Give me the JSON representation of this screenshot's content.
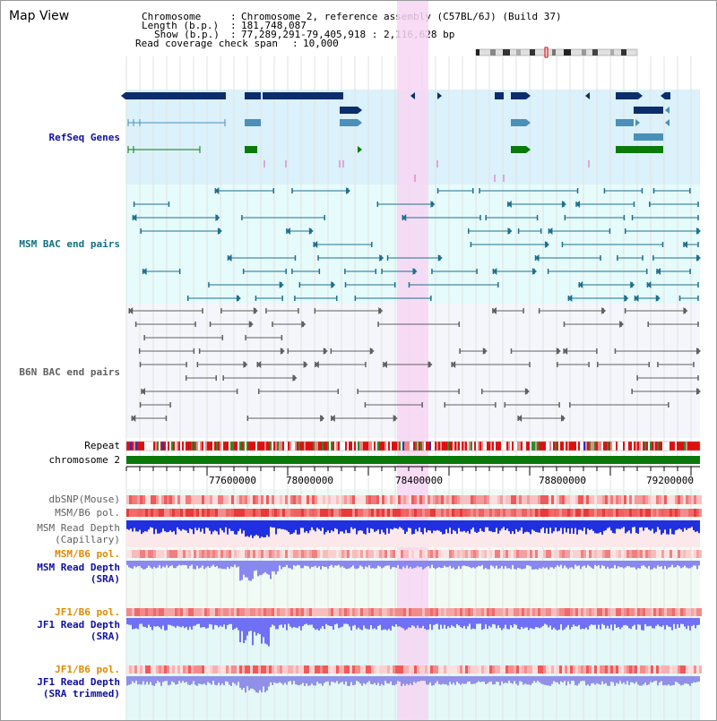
{
  "title": "Map View",
  "header": {
    "chromosome_key": "Chromosome",
    "chromosome_value": "Chromosome 2, reference assembly (C57BL/6J) (Build 37)",
    "length_key": "Length (b.p.)",
    "length_value": "181,748,087",
    "show_key": "Show (b.p.)",
    "show_value": "77,289,291-79,405,918 : 2,116,628 bp",
    "span_key": "Read coverage check span",
    "span_value": "10,000"
  },
  "tracks": {
    "refseq": "RefSeq Genes",
    "msm_bac": "MSM BAC end pairs",
    "b6n_bac": "B6N BAC end pairs",
    "repeat": "Repeat",
    "chromosome": "chromosome 2",
    "dbsnp": "dbSNP(Mouse)",
    "msm_b6_pol_1": "MSM/B6 pol.",
    "msm_depth_cap_1": "MSM Read Depth",
    "msm_depth_cap_2": "(Capillary)",
    "msm_b6_pol_2": "MSM/B6 pol.",
    "msm_depth_sra_1": "MSM Read Depth",
    "msm_depth_sra_2": "(SRA)",
    "jf1_b6_pol_1": "JF1/B6 pol.",
    "jf1_depth_sra_1": "JF1 Read Depth",
    "jf1_depth_sra_2": "(SRA)",
    "jf1_b6_pol_2": "JF1/B6 pol.",
    "jf1_depth_trim_1": "JF1 Read Depth",
    "jf1_depth_trim_2": "(SRA trimmed)"
  },
  "axis": {
    "ticks": [
      "77600000",
      "78000000",
      "78400000",
      "78800000",
      "79200000"
    ]
  },
  "colors": {
    "refseq_bg": "#dbf1fb",
    "msm_bg": "#e6fbfb",
    "b6n_bg": "#f4f6fb",
    "highlight": "#f7d6f3",
    "navy": "#0b2d6b",
    "steel": "#4a90b8",
    "green": "#0b7a0b",
    "teal": "#1f6f8f",
    "gray": "#606060",
    "label_blue": "#1010a0",
    "label_teal": "#107080",
    "label_gray": "#606060",
    "label_orange": "#e08a00"
  }
}
